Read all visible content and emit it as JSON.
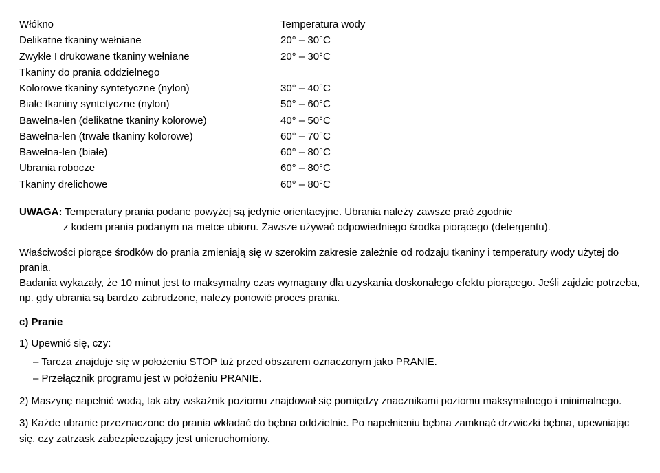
{
  "table": {
    "header_left": "Włókno",
    "header_right": "Temperatura wody",
    "rows": [
      {
        "label": "Delikatne tkaniny wełniane",
        "value": "20° – 30°C"
      },
      {
        "label": "Zwykłe I drukowane tkaniny wełniane",
        "value": "20° – 30°C"
      },
      {
        "label": "Tkaniny do prania oddzielnego",
        "value": ""
      },
      {
        "label": "Kolorowe tkaniny syntetyczne (nylon)",
        "value": "30° – 40°C"
      },
      {
        "label": "Białe tkaniny syntetyczne (nylon)",
        "value": "50° – 60°C"
      },
      {
        "label": "Bawełna-len (delikatne tkaniny kolorowe)",
        "value": "40° – 50°C"
      },
      {
        "label": "Bawełna-len (trwałe tkaniny kolorowe)",
        "value": "60° – 70°C"
      },
      {
        "label": "Bawełna-len (białe)",
        "value": "60° – 80°C"
      },
      {
        "label": "Ubrania robocze",
        "value": "60° – 80°C"
      },
      {
        "label": "Tkaniny drelichowe",
        "value": "60° – 80°C"
      }
    ]
  },
  "note": {
    "label": "UWAGA:",
    "line1": " Temperatury prania podane powyżej są jedynie orientacyjne. Ubrania należy zawsze prać zgodnie",
    "line2": "z kodem prania podanym na metce ubioru. Zawsze używać odpowiedniego środka piorącego (detergentu)."
  },
  "para1": "Właściwości piorące środków do prania zmieniają się w szerokim zakresie zależnie od rodzaju tkaniny i temperatury wody użytej do prania.",
  "para2": "Badania wykazały, że 10 minut jest to maksymalny czas wymagany dla uzyskania doskonałego efektu piorącego. Jeśli zajdzie potrzeba, np. gdy ubrania są bardzo zabrudzone, należy ponowić proces prania.",
  "section_c": "c) Pranie",
  "item1": {
    "lead": "1) Upewnić się, czy:",
    "bullets": [
      "Tarcza znajduje się w położeniu STOP tuż przed obszarem oznaczonym jako PRANIE.",
      "Przełącznik programu jest w położeniu PRANIE."
    ]
  },
  "item2": "2) Maszynę napełnić wodą, tak aby wskaźnik poziomu znajdował się pomiędzy znacznikami poziomu maksymalnego i minimalnego.",
  "item3": "3) Każde ubranie przeznaczone do prania wkładać do bębna oddzielnie. Po napełnieniu bębna zamknąć drzwiczki bębna, upewniając się, czy zatrzask zabezpieczający jest unieruchomiony."
}
